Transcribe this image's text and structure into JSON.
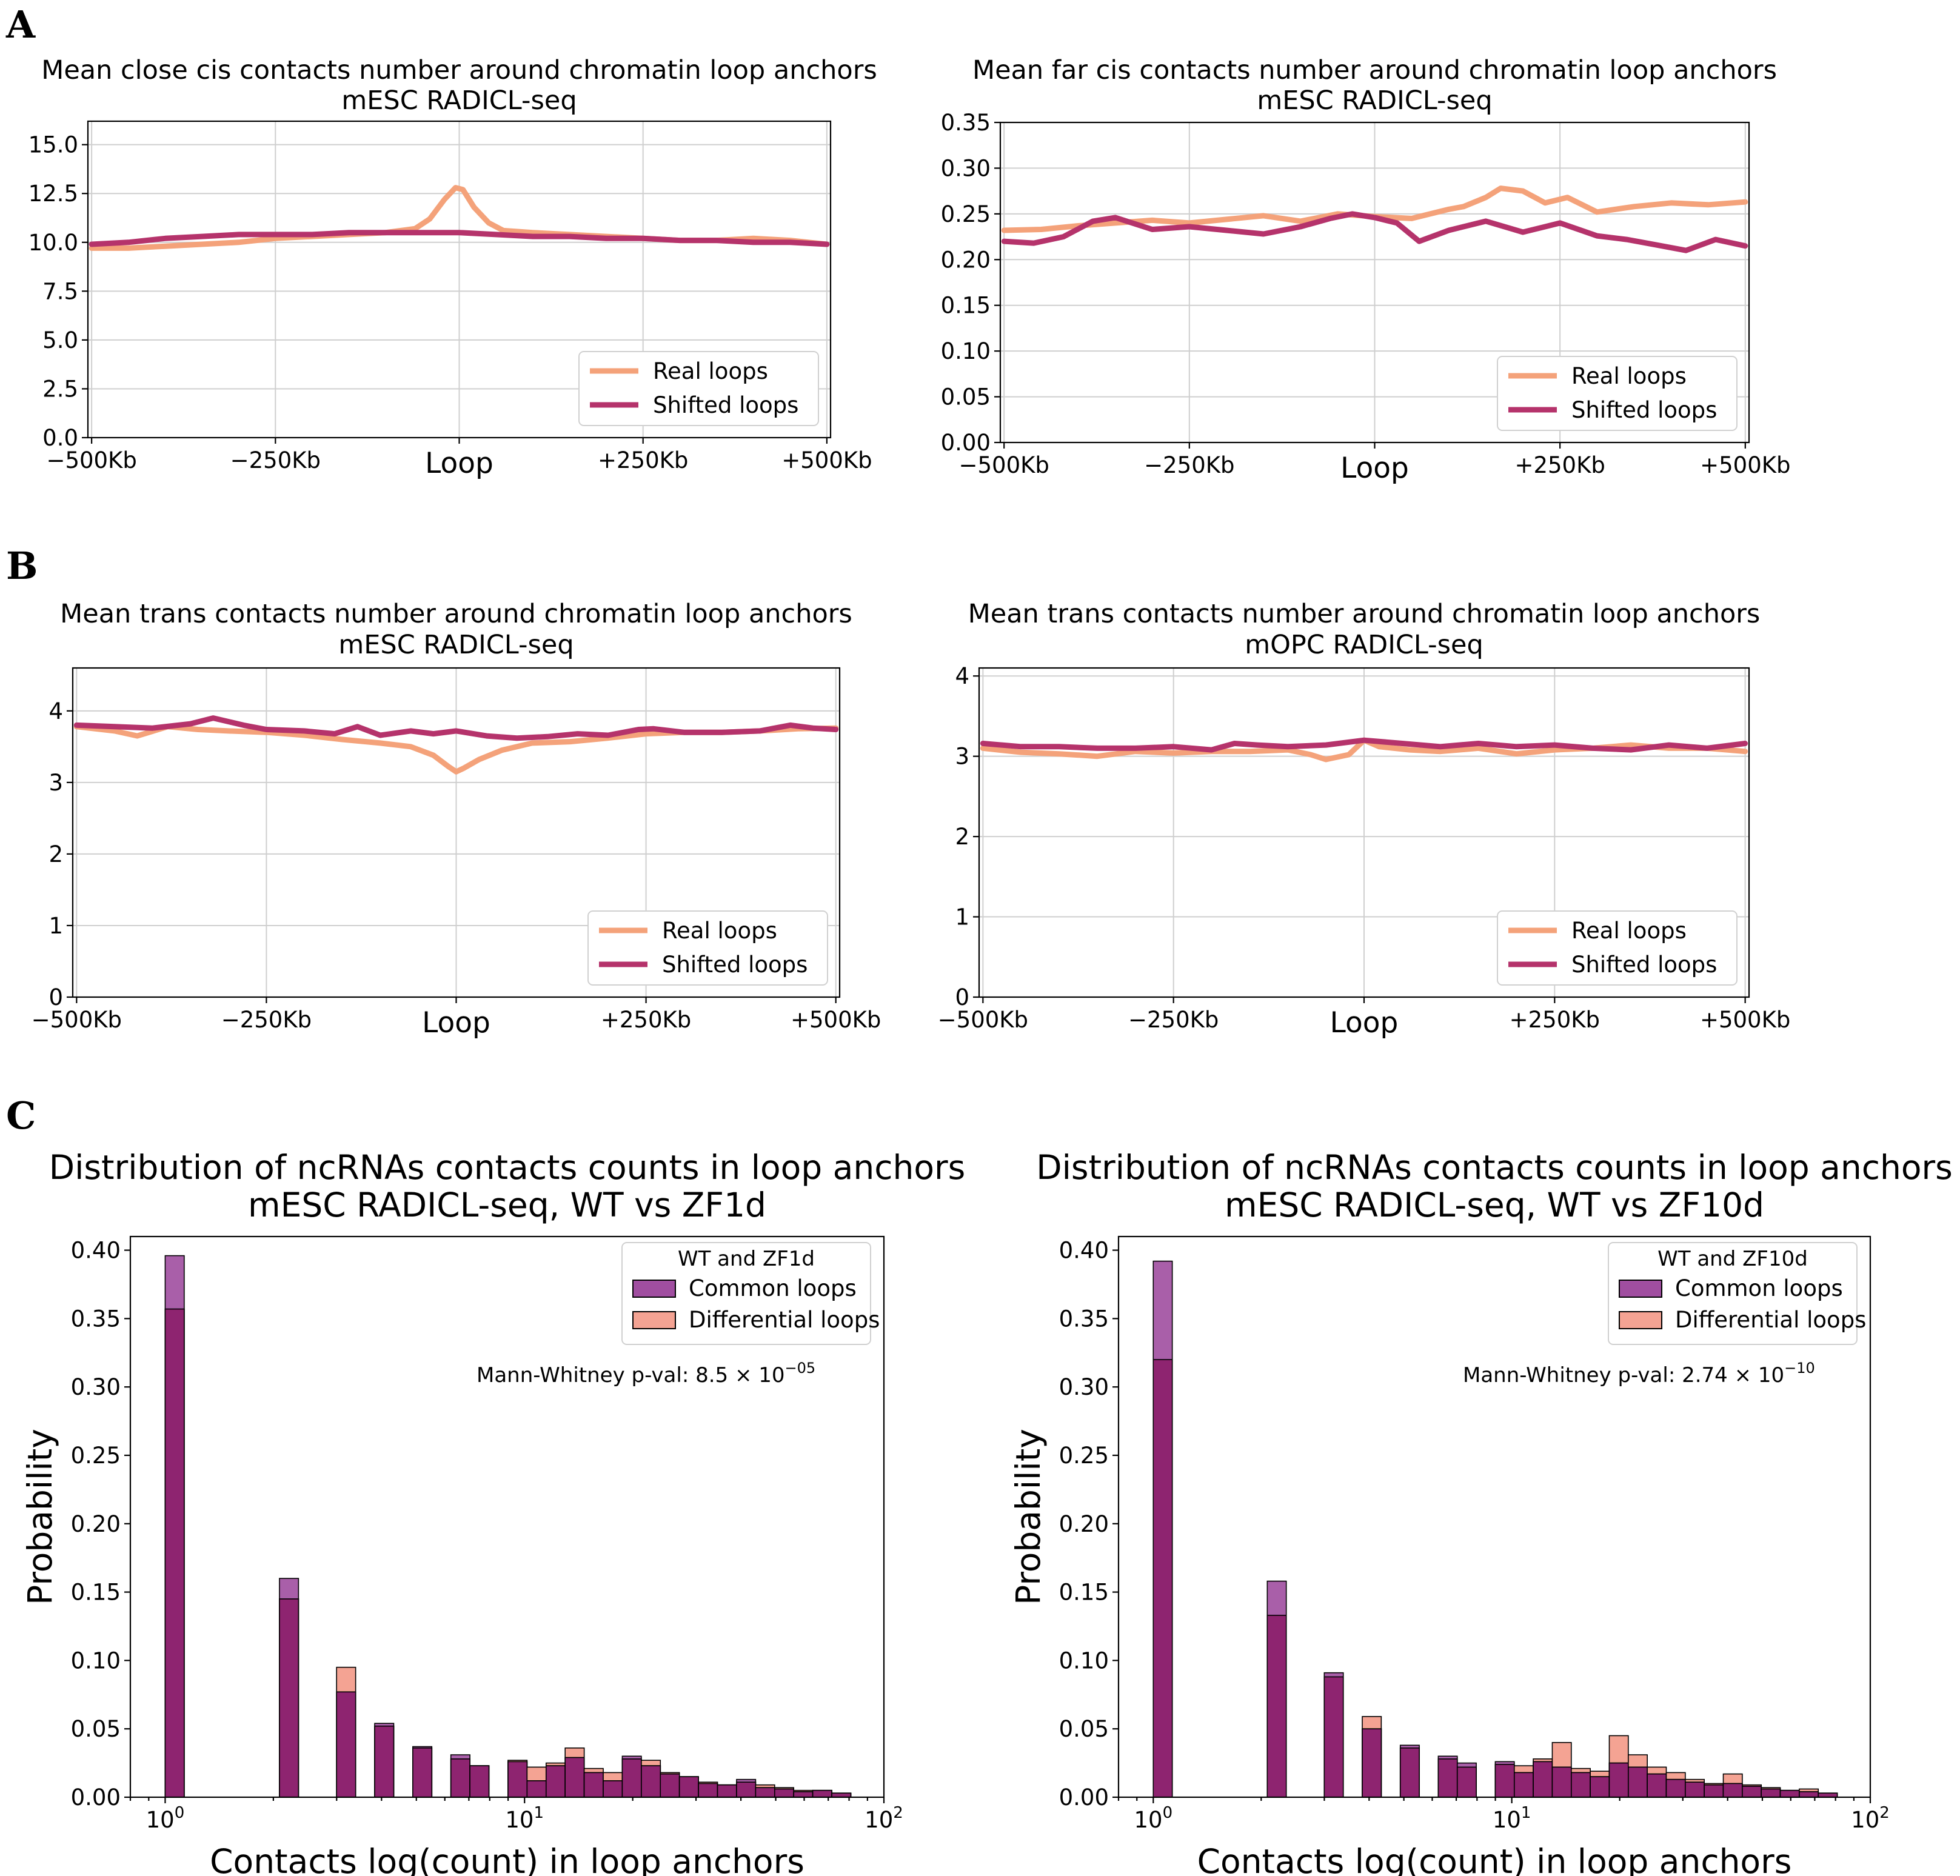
{
  "colors": {
    "real": "#f4a27a",
    "shifted": "#b5336b",
    "common": "#8b2a84",
    "common_top": "#a04ea0",
    "differential": "#f4a393"
  },
  "panel_letters": [
    "A",
    "B",
    "C"
  ],
  "chart_data": [
    {
      "id": "A_left",
      "type": "line",
      "panel": "A",
      "title": "Mean close cis contacts number around chromatin loop anchors",
      "subtitle": "mESC RADICL-seq",
      "xlabel": "",
      "ylabel": "",
      "x_range": [
        -500,
        500
      ],
      "xticks": [
        {
          "x": -500,
          "label": "−500Kb"
        },
        {
          "x": -250,
          "label": "−250Kb"
        },
        {
          "x": 0,
          "label": "Loop"
        },
        {
          "x": 250,
          "label": "+250Kb"
        },
        {
          "x": 500,
          "label": "+500Kb"
        }
      ],
      "ylim": [
        0,
        16.2
      ],
      "yticks": [
        "0.0",
        "2.5",
        "5.0",
        "7.5",
        "10.0",
        "12.5",
        "15.0"
      ],
      "grid": true,
      "legend_position": "lower-right",
      "series": [
        {
          "name": "Real loops",
          "color_key": "real",
          "x": [
            -500,
            -450,
            -400,
            -350,
            -300,
            -250,
            -200,
            -150,
            -100,
            -60,
            -40,
            -20,
            -5,
            5,
            20,
            40,
            60,
            100,
            150,
            200,
            250,
            300,
            350,
            400,
            450,
            500
          ],
          "y": [
            9.7,
            9.7,
            9.8,
            9.9,
            10.0,
            10.2,
            10.3,
            10.4,
            10.5,
            10.7,
            11.2,
            12.2,
            12.8,
            12.7,
            11.8,
            11.0,
            10.6,
            10.5,
            10.4,
            10.3,
            10.2,
            10.1,
            10.1,
            10.2,
            10.1,
            9.9
          ]
        },
        {
          "name": "Shifted loops",
          "color_key": "shifted",
          "x": [
            -500,
            -450,
            -400,
            -350,
            -300,
            -250,
            -200,
            -150,
            -100,
            -50,
            0,
            50,
            100,
            150,
            200,
            250,
            300,
            350,
            400,
            450,
            500
          ],
          "y": [
            9.9,
            10.0,
            10.2,
            10.3,
            10.4,
            10.4,
            10.4,
            10.5,
            10.5,
            10.5,
            10.5,
            10.4,
            10.3,
            10.3,
            10.2,
            10.2,
            10.1,
            10.1,
            10.0,
            10.0,
            9.9
          ]
        }
      ]
    },
    {
      "id": "A_right",
      "type": "line",
      "panel": "A",
      "title": "Mean far cis contacts number around chromatin loop anchors",
      "subtitle": "mESC RADICL-seq",
      "xlabel": "",
      "ylabel": "",
      "x_range": [
        -500,
        500
      ],
      "xticks": [
        {
          "x": -500,
          "label": "−500Kb"
        },
        {
          "x": -250,
          "label": "−250Kb"
        },
        {
          "x": 0,
          "label": "Loop"
        },
        {
          "x": 250,
          "label": "+250Kb"
        },
        {
          "x": 500,
          "label": "+500Kb"
        }
      ],
      "ylim": [
        0,
        0.35
      ],
      "yticks": [
        "0.00",
        "0.05",
        "0.10",
        "0.15",
        "0.20",
        "0.25",
        "0.30",
        "0.35"
      ],
      "grid": true,
      "legend_position": "lower-right",
      "series": [
        {
          "name": "Real loops",
          "color_key": "real",
          "x": [
            -500,
            -450,
            -400,
            -350,
            -300,
            -250,
            -200,
            -150,
            -100,
            -50,
            0,
            50,
            100,
            120,
            150,
            170,
            200,
            230,
            260,
            300,
            350,
            400,
            450,
            500
          ],
          "y": [
            0.232,
            0.233,
            0.237,
            0.24,
            0.243,
            0.24,
            0.244,
            0.248,
            0.242,
            0.25,
            0.247,
            0.245,
            0.255,
            0.258,
            0.268,
            0.278,
            0.275,
            0.262,
            0.268,
            0.252,
            0.258,
            0.262,
            0.26,
            0.263
          ]
        },
        {
          "name": "Shifted loops",
          "color_key": "shifted",
          "x": [
            -500,
            -460,
            -420,
            -380,
            -350,
            -300,
            -250,
            -200,
            -150,
            -100,
            -60,
            -30,
            0,
            30,
            60,
            100,
            150,
            200,
            250,
            300,
            340,
            380,
            420,
            460,
            500
          ],
          "y": [
            0.22,
            0.218,
            0.225,
            0.242,
            0.246,
            0.233,
            0.236,
            0.232,
            0.228,
            0.236,
            0.245,
            0.25,
            0.246,
            0.24,
            0.22,
            0.232,
            0.242,
            0.23,
            0.24,
            0.226,
            0.222,
            0.216,
            0.21,
            0.222,
            0.215
          ]
        }
      ]
    },
    {
      "id": "B_left",
      "type": "line",
      "panel": "B",
      "title": "Mean trans contacts number around chromatin loop anchors",
      "subtitle": "mESC RADICL-seq",
      "xlabel": "",
      "ylabel": "",
      "x_range": [
        -500,
        500
      ],
      "xticks": [
        {
          "x": -500,
          "label": "−500Kb"
        },
        {
          "x": -250,
          "label": "−250Kb"
        },
        {
          "x": 0,
          "label": "Loop"
        },
        {
          "x": 250,
          "label": "+250Kb"
        },
        {
          "x": 500,
          "label": "+500Kb"
        }
      ],
      "ylim": [
        0,
        4.6
      ],
      "yticks": [
        "0",
        "1",
        "2",
        "3",
        "4"
      ],
      "grid": true,
      "legend_position": "lower-right",
      "series": [
        {
          "name": "Real loops",
          "color_key": "real",
          "x": [
            -500,
            -450,
            -420,
            -380,
            -340,
            -300,
            -250,
            -200,
            -150,
            -100,
            -60,
            -30,
            -10,
            0,
            10,
            30,
            60,
            100,
            150,
            200,
            250,
            300,
            350,
            400,
            450,
            500
          ],
          "y": [
            3.78,
            3.72,
            3.65,
            3.78,
            3.74,
            3.72,
            3.7,
            3.66,
            3.6,
            3.55,
            3.5,
            3.38,
            3.22,
            3.15,
            3.2,
            3.32,
            3.45,
            3.55,
            3.57,
            3.62,
            3.68,
            3.7,
            3.7,
            3.72,
            3.75,
            3.76
          ]
        },
        {
          "name": "Shifted loops",
          "color_key": "shifted",
          "x": [
            -500,
            -450,
            -400,
            -350,
            -320,
            -280,
            -250,
            -200,
            -160,
            -130,
            -100,
            -60,
            -30,
            0,
            40,
            80,
            120,
            160,
            200,
            240,
            260,
            300,
            350,
            400,
            440,
            470,
            500
          ],
          "y": [
            3.8,
            3.78,
            3.76,
            3.82,
            3.9,
            3.8,
            3.74,
            3.72,
            3.68,
            3.78,
            3.66,
            3.72,
            3.68,
            3.72,
            3.65,
            3.62,
            3.64,
            3.68,
            3.66,
            3.74,
            3.75,
            3.7,
            3.7,
            3.72,
            3.8,
            3.76,
            3.74
          ]
        }
      ]
    },
    {
      "id": "B_right",
      "type": "line",
      "panel": "B",
      "title": "Mean trans contacts number around chromatin loop anchors",
      "subtitle": "mOPC RADICL-seq",
      "xlabel": "",
      "ylabel": "",
      "x_range": [
        -500,
        500
      ],
      "xticks": [
        {
          "x": -500,
          "label": "−500Kb"
        },
        {
          "x": -250,
          "label": "−250Kb"
        },
        {
          "x": 0,
          "label": "Loop"
        },
        {
          "x": 250,
          "label": "+250Kb"
        },
        {
          "x": 500,
          "label": "+500Kb"
        }
      ],
      "ylim": [
        0,
        4.1
      ],
      "yticks": [
        "0",
        "1",
        "2",
        "3",
        "4"
      ],
      "grid": true,
      "legend_position": "lower-right",
      "series": [
        {
          "name": "Real loops",
          "color_key": "real",
          "x": [
            -500,
            -450,
            -400,
            -350,
            -300,
            -250,
            -200,
            -150,
            -100,
            -70,
            -50,
            -20,
            0,
            20,
            60,
            100,
            150,
            200,
            250,
            300,
            350,
            400,
            450,
            500
          ],
          "y": [
            3.1,
            3.05,
            3.03,
            3.0,
            3.06,
            3.04,
            3.06,
            3.06,
            3.08,
            3.02,
            2.96,
            3.02,
            3.2,
            3.12,
            3.08,
            3.06,
            3.1,
            3.03,
            3.08,
            3.1,
            3.14,
            3.1,
            3.1,
            3.06
          ]
        },
        {
          "name": "Shifted loops",
          "color_key": "shifted",
          "x": [
            -500,
            -450,
            -400,
            -350,
            -300,
            -250,
            -200,
            -170,
            -140,
            -100,
            -50,
            0,
            50,
            100,
            150,
            200,
            250,
            300,
            350,
            400,
            450,
            500
          ],
          "y": [
            3.16,
            3.12,
            3.12,
            3.1,
            3.1,
            3.12,
            3.08,
            3.16,
            3.14,
            3.12,
            3.14,
            3.2,
            3.16,
            3.12,
            3.16,
            3.12,
            3.14,
            3.1,
            3.08,
            3.14,
            3.1,
            3.16
          ]
        }
      ]
    },
    {
      "id": "C_left",
      "type": "bar",
      "panel": "C",
      "title": "Distribution of ncRNAs contacts counts in loop anchors",
      "subtitle": "mESC RADICL-seq, WT vs ZF1d",
      "xlabel": "Contacts log(count) in loop anchors",
      "ylabel": "Probability",
      "x_scale": "log",
      "xlim": [
        0.8,
        100
      ],
      "xticks": [
        {
          "x": 1,
          "label": "10",
          "exp": "0"
        },
        {
          "x": 10,
          "label": "10",
          "exp": "1"
        },
        {
          "x": 100,
          "label": "10",
          "exp": "2"
        }
      ],
      "ylim": [
        0,
        0.41
      ],
      "yticks": [
        "0.00",
        "0.05",
        "0.10",
        "0.15",
        "0.20",
        "0.25",
        "0.30",
        "0.35",
        "0.40"
      ],
      "grid": false,
      "legend_title": "WT and ZF1d",
      "legend_position": "top-right",
      "annotation": "Mann-Whitney p-val: 8.5 × 10",
      "annotation_exp": "−05",
      "bin_edges_log10": [
        0,
        0.053,
        0.106,
        0.159,
        0.212,
        0.265,
        0.318,
        0.371,
        0.424,
        0.477,
        0.53,
        0.583,
        0.636,
        0.689,
        0.742,
        0.795,
        0.848,
        0.901,
        0.954,
        1.007,
        1.06,
        1.113,
        1.166,
        1.219,
        1.272,
        1.325,
        1.378,
        1.431,
        1.484,
        1.537,
        1.59,
        1.643,
        1.696,
        1.749,
        1.802,
        1.855,
        1.908
      ],
      "series": [
        {
          "name": "Common loops",
          "color_key": "common",
          "values": [
            0.396,
            0,
            0,
            0,
            0,
            0,
            0.16,
            0,
            0,
            0.077,
            0,
            0.054,
            0,
            0.037,
            0,
            0.031,
            0.023,
            0,
            0.026,
            0.012,
            0.023,
            0.029,
            0.018,
            0.012,
            0.03,
            0.023,
            0.017,
            0.015,
            0.01,
            0.009,
            0.013,
            0.007,
            0.006,
            0.004,
            0.005,
            0.003
          ]
        },
        {
          "name": "Differential loops",
          "color_key": "differential",
          "values": [
            0.357,
            0,
            0,
            0,
            0,
            0,
            0.145,
            0,
            0,
            0.095,
            0,
            0.052,
            0,
            0.036,
            0,
            0.028,
            0.023,
            0,
            0.027,
            0.022,
            0.025,
            0.036,
            0.021,
            0.018,
            0.028,
            0.027,
            0.018,
            0.015,
            0.011,
            0.009,
            0.011,
            0.009,
            0.007,
            0.005,
            0.005,
            0.003
          ]
        }
      ]
    },
    {
      "id": "C_right",
      "type": "bar",
      "panel": "C",
      "title": "Distribution of ncRNAs contacts counts in loop anchors",
      "subtitle": "mESC RADICL-seq, WT vs ZF10d",
      "xlabel": "Contacts log(count) in loop anchors",
      "ylabel": "Probability",
      "x_scale": "log",
      "xlim": [
        0.8,
        100
      ],
      "xticks": [
        {
          "x": 1,
          "label": "10",
          "exp": "0"
        },
        {
          "x": 10,
          "label": "10",
          "exp": "1"
        },
        {
          "x": 100,
          "label": "10",
          "exp": "2"
        }
      ],
      "ylim": [
        0,
        0.41
      ],
      "yticks": [
        "0.00",
        "0.05",
        "0.10",
        "0.15",
        "0.20",
        "0.25",
        "0.30",
        "0.35",
        "0.40"
      ],
      "grid": false,
      "legend_title": "WT and ZF10d",
      "legend_position": "top-right",
      "annotation": "Mann-Whitney p-val: 2.74 × 10",
      "annotation_exp": "−10",
      "bin_edges_log10": [
        0,
        0.053,
        0.106,
        0.159,
        0.212,
        0.265,
        0.318,
        0.371,
        0.424,
        0.477,
        0.53,
        0.583,
        0.636,
        0.689,
        0.742,
        0.795,
        0.848,
        0.901,
        0.954,
        1.007,
        1.06,
        1.113,
        1.166,
        1.219,
        1.272,
        1.325,
        1.378,
        1.431,
        1.484,
        1.537,
        1.59,
        1.643,
        1.696,
        1.749,
        1.802,
        1.855,
        1.908
      ],
      "series": [
        {
          "name": "Common loops",
          "color_key": "common",
          "values": [
            0.392,
            0,
            0,
            0,
            0,
            0,
            0.158,
            0,
            0,
            0.091,
            0,
            0.05,
            0,
            0.038,
            0,
            0.03,
            0.025,
            0,
            0.026,
            0.018,
            0.026,
            0.022,
            0.018,
            0.015,
            0.025,
            0.022,
            0.017,
            0.013,
            0.011,
            0.009,
            0.01,
            0.008,
            0.006,
            0.005,
            0.004,
            0.003
          ]
        },
        {
          "name": "Differential loops",
          "color_key": "differential",
          "values": [
            0.32,
            0,
            0,
            0,
            0,
            0,
            0.133,
            0,
            0,
            0.088,
            0,
            0.059,
            0,
            0.036,
            0,
            0.028,
            0.022,
            0,
            0.024,
            0.023,
            0.028,
            0.04,
            0.021,
            0.019,
            0.045,
            0.031,
            0.022,
            0.018,
            0.013,
            0.01,
            0.017,
            0.009,
            0.007,
            0.005,
            0.006,
            0.003
          ]
        }
      ]
    }
  ]
}
